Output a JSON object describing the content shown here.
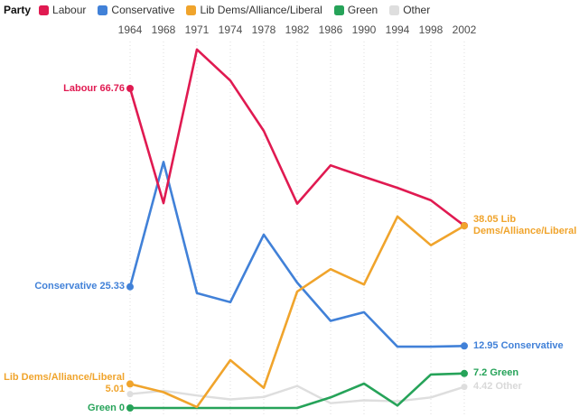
{
  "legend": {
    "title": "Party",
    "items": [
      {
        "id": "labour",
        "label": "Labour",
        "color": "#e01a51"
      },
      {
        "id": "conservative",
        "label": "Conservative",
        "color": "#4181d8"
      },
      {
        "id": "libdem",
        "label": "Lib Dems/Alliance/Liberal",
        "color": "#f0a42c"
      },
      {
        "id": "green",
        "label": "Green",
        "color": "#26a359"
      },
      {
        "id": "other",
        "label": "Other",
        "color": "#dedede"
      }
    ]
  },
  "chart_data": {
    "type": "line",
    "title": "",
    "xlabel": "",
    "ylabel": "",
    "x": [
      1964,
      1968,
      1971,
      1974,
      1978,
      1982,
      1986,
      1990,
      1994,
      1998,
      2002
    ],
    "series": [
      {
        "id": "labour",
        "name": "Labour",
        "color": "#e01a51",
        "width": 2.6,
        "values": [
          66.76,
          42.8,
          74.9,
          68.4,
          57.9,
          42.7,
          50.7,
          48.3,
          46.0,
          43.4,
          38.1
        ]
      },
      {
        "id": "conservative",
        "name": "Conservative",
        "color": "#4181d8",
        "width": 2.6,
        "values": [
          25.33,
          51.4,
          24.0,
          22.1,
          36.2,
          26.2,
          18.2,
          20.0,
          12.8,
          12.8,
          12.95
        ]
      },
      {
        "id": "libdem",
        "name": "Lib Dems/Alliance/Liberal",
        "color": "#f0a42c",
        "width": 2.6,
        "values": [
          5.01,
          3.3,
          0.2,
          10.0,
          4.2,
          24.3,
          29.0,
          25.8,
          40.0,
          34.0,
          38.05
        ]
      },
      {
        "id": "green",
        "name": "Green",
        "color": "#26a359",
        "width": 2.6,
        "values": [
          0,
          0,
          0,
          0,
          0,
          0,
          2.2,
          5.1,
          0.5,
          7.0,
          7.2
        ]
      },
      {
        "id": "other",
        "name": "Other",
        "color": "#dedede",
        "width": 2.4,
        "values": [
          2.9,
          3.6,
          2.6,
          1.8,
          2.3,
          4.6,
          1.0,
          1.6,
          1.4,
          2.2,
          4.42
        ]
      }
    ],
    "ylim": [
      0,
      76
    ],
    "grid": "vertical-dotted",
    "legend_position": "top-left"
  },
  "annotations": {
    "start_labels": [
      {
        "id": "labour",
        "lines": [
          "Labour 66.76"
        ],
        "value": 66.76,
        "color": "#e01a51"
      },
      {
        "id": "conservative",
        "lines": [
          "Conservative 25.33"
        ],
        "value": 25.33,
        "color": "#4181d8"
      },
      {
        "id": "libdem",
        "lines": [
          "Lib Dems/Alliance/Liberal",
          "5.01"
        ],
        "value": 5.01,
        "color": "#f0a42c"
      },
      {
        "id": "green",
        "lines": [
          "Green 0"
        ],
        "value": 0,
        "color": "#26a359"
      }
    ],
    "end_labels": [
      {
        "id": "libdem",
        "lines": [
          "38.05 Lib",
          "Dems/Alliance/Liberal"
        ],
        "value": 38.05,
        "color": "#f0a42c"
      },
      {
        "id": "conservative",
        "lines": [
          "12.95 Conservative"
        ],
        "value": 12.95,
        "color": "#4181d8"
      },
      {
        "id": "green",
        "lines": [
          "7.2 Green"
        ],
        "value": 7.2,
        "color": "#26a359"
      },
      {
        "id": "other",
        "lines": [
          "4.42 Other"
        ],
        "value": 4.42,
        "color": "#d9d9d9"
      }
    ]
  }
}
